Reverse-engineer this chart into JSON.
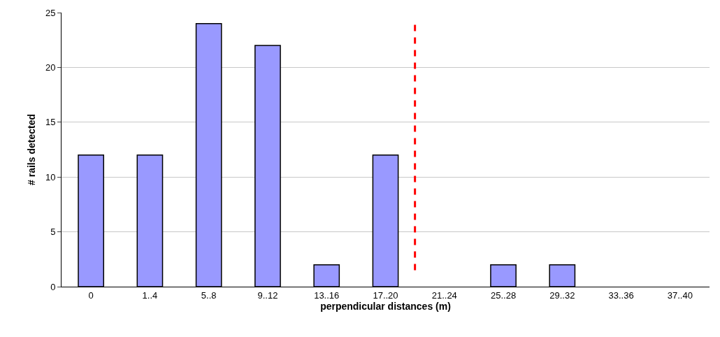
{
  "chart_data": {
    "type": "bar",
    "xlabel": "perpendicular distances (m)",
    "ylabel": "# rails detected",
    "categories": [
      "0",
      "1..4",
      "5..8",
      "9..12",
      "13..16",
      "17..20",
      "21..24",
      "25..28",
      "29..32",
      "33..36",
      "37..40"
    ],
    "values": [
      12,
      12,
      24,
      22,
      2,
      12,
      0,
      2,
      2,
      0,
      0
    ],
    "color": "#9999ff",
    "ylim": [
      0,
      25
    ],
    "yticks": [
      0,
      5,
      10,
      15,
      20,
      25
    ],
    "grid": "y",
    "ref_lines": [
      {
        "axis": "x",
        "value": "21..24",
        "color": "#ff0000",
        "line_style": "dashed"
      }
    ]
  }
}
